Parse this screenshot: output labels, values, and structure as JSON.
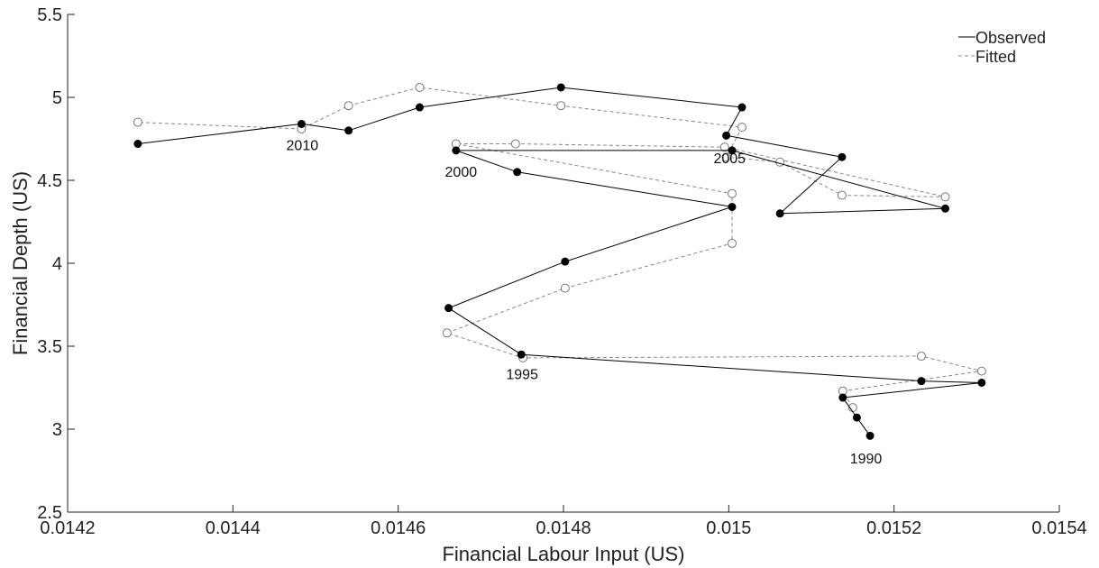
{
  "chart_data": {
    "type": "line",
    "xlabel": "Financial Labour Input (US)",
    "ylabel": "Financial Depth (US)",
    "xlim": [
      0.0142,
      0.0154
    ],
    "ylim": [
      2.5,
      5.5
    ],
    "xticks": [
      0.0142,
      0.0144,
      0.0146,
      0.0148,
      0.015,
      0.0152,
      0.0154
    ],
    "xtick_labels": [
      "0.0142",
      "0.0144",
      "0.0146",
      "0.0148",
      "0.015",
      "0.0152",
      "0.0154"
    ],
    "yticks": [
      2.5,
      3,
      3.5,
      4,
      4.5,
      5,
      5.5
    ],
    "ytick_labels": [
      "2.5",
      "3",
      "3.5",
      "4",
      "4.5",
      "5",
      "5.5"
    ],
    "grid": false,
    "legend_position": "top-right",
    "series": [
      {
        "name": "Observed",
        "line_style": "solid",
        "marker": "filled-circle",
        "color": "#000000",
        "points": [
          [
            0.015171,
            2.96
          ],
          [
            0.015155,
            3.07
          ],
          [
            0.015138,
            3.19
          ],
          [
            0.015306,
            3.28
          ],
          [
            0.015233,
            3.29
          ],
          [
            0.014749,
            3.45
          ],
          [
            0.014661,
            3.73
          ],
          [
            0.014802,
            4.01
          ],
          [
            0.015004,
            4.34
          ],
          [
            0.014744,
            4.55
          ],
          [
            0.01467,
            4.68
          ],
          [
            0.015004,
            4.68
          ],
          [
            0.015262,
            4.33
          ],
          [
            0.015062,
            4.3
          ],
          [
            0.015137,
            4.64
          ],
          [
            0.014997,
            4.77
          ],
          [
            0.015016,
            4.94
          ],
          [
            0.014797,
            5.06
          ],
          [
            0.014626,
            4.94
          ],
          [
            0.01454,
            4.8
          ],
          [
            0.014483,
            4.84
          ],
          [
            0.014285,
            4.72
          ]
        ]
      },
      {
        "name": "Fitted",
        "line_style": "dashed",
        "marker": "open-circle",
        "color": "#888888",
        "points": [
          [
            0.01515,
            3.13
          ],
          [
            0.015138,
            3.23
          ],
          [
            0.015306,
            3.35
          ],
          [
            0.015233,
            3.44
          ],
          [
            0.014751,
            3.43
          ],
          [
            0.014659,
            3.58
          ],
          [
            0.014802,
            3.85
          ],
          [
            0.015004,
            4.12
          ],
          [
            0.015004,
            4.42
          ],
          [
            0.01467,
            4.72
          ],
          [
            0.014742,
            4.72
          ],
          [
            0.014995,
            4.7
          ],
          [
            0.015262,
            4.4
          ],
          [
            0.015137,
            4.41
          ],
          [
            0.015062,
            4.61
          ],
          [
            0.014997,
            4.64
          ],
          [
            0.015016,
            4.82
          ],
          [
            0.014797,
            4.95
          ],
          [
            0.014626,
            5.06
          ],
          [
            0.01454,
            4.95
          ],
          [
            0.014483,
            4.81
          ],
          [
            0.014285,
            4.85
          ]
        ]
      }
    ],
    "annotations": [
      {
        "text": "1990",
        "x": 0.015166,
        "y": 2.82
      },
      {
        "text": "1995",
        "x": 0.01475,
        "y": 3.33
      },
      {
        "text": "2000",
        "x": 0.014676,
        "y": 4.55
      },
      {
        "text": "2005",
        "x": 0.015001,
        "y": 4.63
      },
      {
        "text": "2010",
        "x": 0.014484,
        "y": 4.71
      }
    ]
  }
}
